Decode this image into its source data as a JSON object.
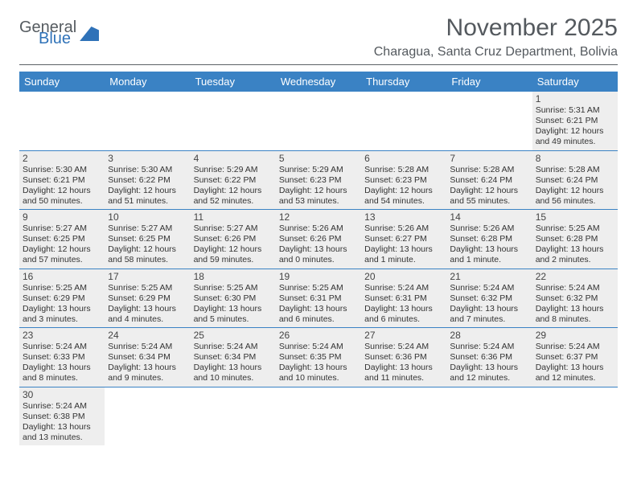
{
  "logo": {
    "part1": "General",
    "part2": "Blue"
  },
  "title": "November 2025",
  "location": "Charagua, Santa Cruz Department, Bolivia",
  "colors": {
    "header_bg": "#3a82c4",
    "header_text": "#ffffff",
    "cell_bg": "#eeeeee",
    "border": "#3a82c4",
    "title_color": "#54595e",
    "body_text": "#333333"
  },
  "typography": {
    "title_fontsize": 30,
    "location_fontsize": 16,
    "dayheader_fontsize": 13,
    "daynum_fontsize": 12,
    "info_fontsize": 10.5
  },
  "day_headers": [
    "Sunday",
    "Monday",
    "Tuesday",
    "Wednesday",
    "Thursday",
    "Friday",
    "Saturday"
  ],
  "weeks": [
    [
      null,
      null,
      null,
      null,
      null,
      null,
      {
        "num": "1",
        "sunrise": "Sunrise: 5:31 AM",
        "sunset": "Sunset: 6:21 PM",
        "daylight": "Daylight: 12 hours and 49 minutes."
      }
    ],
    [
      {
        "num": "2",
        "sunrise": "Sunrise: 5:30 AM",
        "sunset": "Sunset: 6:21 PM",
        "daylight": "Daylight: 12 hours and 50 minutes."
      },
      {
        "num": "3",
        "sunrise": "Sunrise: 5:30 AM",
        "sunset": "Sunset: 6:22 PM",
        "daylight": "Daylight: 12 hours and 51 minutes."
      },
      {
        "num": "4",
        "sunrise": "Sunrise: 5:29 AM",
        "sunset": "Sunset: 6:22 PM",
        "daylight": "Daylight: 12 hours and 52 minutes."
      },
      {
        "num": "5",
        "sunrise": "Sunrise: 5:29 AM",
        "sunset": "Sunset: 6:23 PM",
        "daylight": "Daylight: 12 hours and 53 minutes."
      },
      {
        "num": "6",
        "sunrise": "Sunrise: 5:28 AM",
        "sunset": "Sunset: 6:23 PM",
        "daylight": "Daylight: 12 hours and 54 minutes."
      },
      {
        "num": "7",
        "sunrise": "Sunrise: 5:28 AM",
        "sunset": "Sunset: 6:24 PM",
        "daylight": "Daylight: 12 hours and 55 minutes."
      },
      {
        "num": "8",
        "sunrise": "Sunrise: 5:28 AM",
        "sunset": "Sunset: 6:24 PM",
        "daylight": "Daylight: 12 hours and 56 minutes."
      }
    ],
    [
      {
        "num": "9",
        "sunrise": "Sunrise: 5:27 AM",
        "sunset": "Sunset: 6:25 PM",
        "daylight": "Daylight: 12 hours and 57 minutes."
      },
      {
        "num": "10",
        "sunrise": "Sunrise: 5:27 AM",
        "sunset": "Sunset: 6:25 PM",
        "daylight": "Daylight: 12 hours and 58 minutes."
      },
      {
        "num": "11",
        "sunrise": "Sunrise: 5:27 AM",
        "sunset": "Sunset: 6:26 PM",
        "daylight": "Daylight: 12 hours and 59 minutes."
      },
      {
        "num": "12",
        "sunrise": "Sunrise: 5:26 AM",
        "sunset": "Sunset: 6:26 PM",
        "daylight": "Daylight: 13 hours and 0 minutes."
      },
      {
        "num": "13",
        "sunrise": "Sunrise: 5:26 AM",
        "sunset": "Sunset: 6:27 PM",
        "daylight": "Daylight: 13 hours and 1 minute."
      },
      {
        "num": "14",
        "sunrise": "Sunrise: 5:26 AM",
        "sunset": "Sunset: 6:28 PM",
        "daylight": "Daylight: 13 hours and 1 minute."
      },
      {
        "num": "15",
        "sunrise": "Sunrise: 5:25 AM",
        "sunset": "Sunset: 6:28 PM",
        "daylight": "Daylight: 13 hours and 2 minutes."
      }
    ],
    [
      {
        "num": "16",
        "sunrise": "Sunrise: 5:25 AM",
        "sunset": "Sunset: 6:29 PM",
        "daylight": "Daylight: 13 hours and 3 minutes."
      },
      {
        "num": "17",
        "sunrise": "Sunrise: 5:25 AM",
        "sunset": "Sunset: 6:29 PM",
        "daylight": "Daylight: 13 hours and 4 minutes."
      },
      {
        "num": "18",
        "sunrise": "Sunrise: 5:25 AM",
        "sunset": "Sunset: 6:30 PM",
        "daylight": "Daylight: 13 hours and 5 minutes."
      },
      {
        "num": "19",
        "sunrise": "Sunrise: 5:25 AM",
        "sunset": "Sunset: 6:31 PM",
        "daylight": "Daylight: 13 hours and 6 minutes."
      },
      {
        "num": "20",
        "sunrise": "Sunrise: 5:24 AM",
        "sunset": "Sunset: 6:31 PM",
        "daylight": "Daylight: 13 hours and 6 minutes."
      },
      {
        "num": "21",
        "sunrise": "Sunrise: 5:24 AM",
        "sunset": "Sunset: 6:32 PM",
        "daylight": "Daylight: 13 hours and 7 minutes."
      },
      {
        "num": "22",
        "sunrise": "Sunrise: 5:24 AM",
        "sunset": "Sunset: 6:32 PM",
        "daylight": "Daylight: 13 hours and 8 minutes."
      }
    ],
    [
      {
        "num": "23",
        "sunrise": "Sunrise: 5:24 AM",
        "sunset": "Sunset: 6:33 PM",
        "daylight": "Daylight: 13 hours and 8 minutes."
      },
      {
        "num": "24",
        "sunrise": "Sunrise: 5:24 AM",
        "sunset": "Sunset: 6:34 PM",
        "daylight": "Daylight: 13 hours and 9 minutes."
      },
      {
        "num": "25",
        "sunrise": "Sunrise: 5:24 AM",
        "sunset": "Sunset: 6:34 PM",
        "daylight": "Daylight: 13 hours and 10 minutes."
      },
      {
        "num": "26",
        "sunrise": "Sunrise: 5:24 AM",
        "sunset": "Sunset: 6:35 PM",
        "daylight": "Daylight: 13 hours and 10 minutes."
      },
      {
        "num": "27",
        "sunrise": "Sunrise: 5:24 AM",
        "sunset": "Sunset: 6:36 PM",
        "daylight": "Daylight: 13 hours and 11 minutes."
      },
      {
        "num": "28",
        "sunrise": "Sunrise: 5:24 AM",
        "sunset": "Sunset: 6:36 PM",
        "daylight": "Daylight: 13 hours and 12 minutes."
      },
      {
        "num": "29",
        "sunrise": "Sunrise: 5:24 AM",
        "sunset": "Sunset: 6:37 PM",
        "daylight": "Daylight: 13 hours and 12 minutes."
      }
    ],
    [
      {
        "num": "30",
        "sunrise": "Sunrise: 5:24 AM",
        "sunset": "Sunset: 6:38 PM",
        "daylight": "Daylight: 13 hours and 13 minutes."
      },
      null,
      null,
      null,
      null,
      null,
      null
    ]
  ]
}
